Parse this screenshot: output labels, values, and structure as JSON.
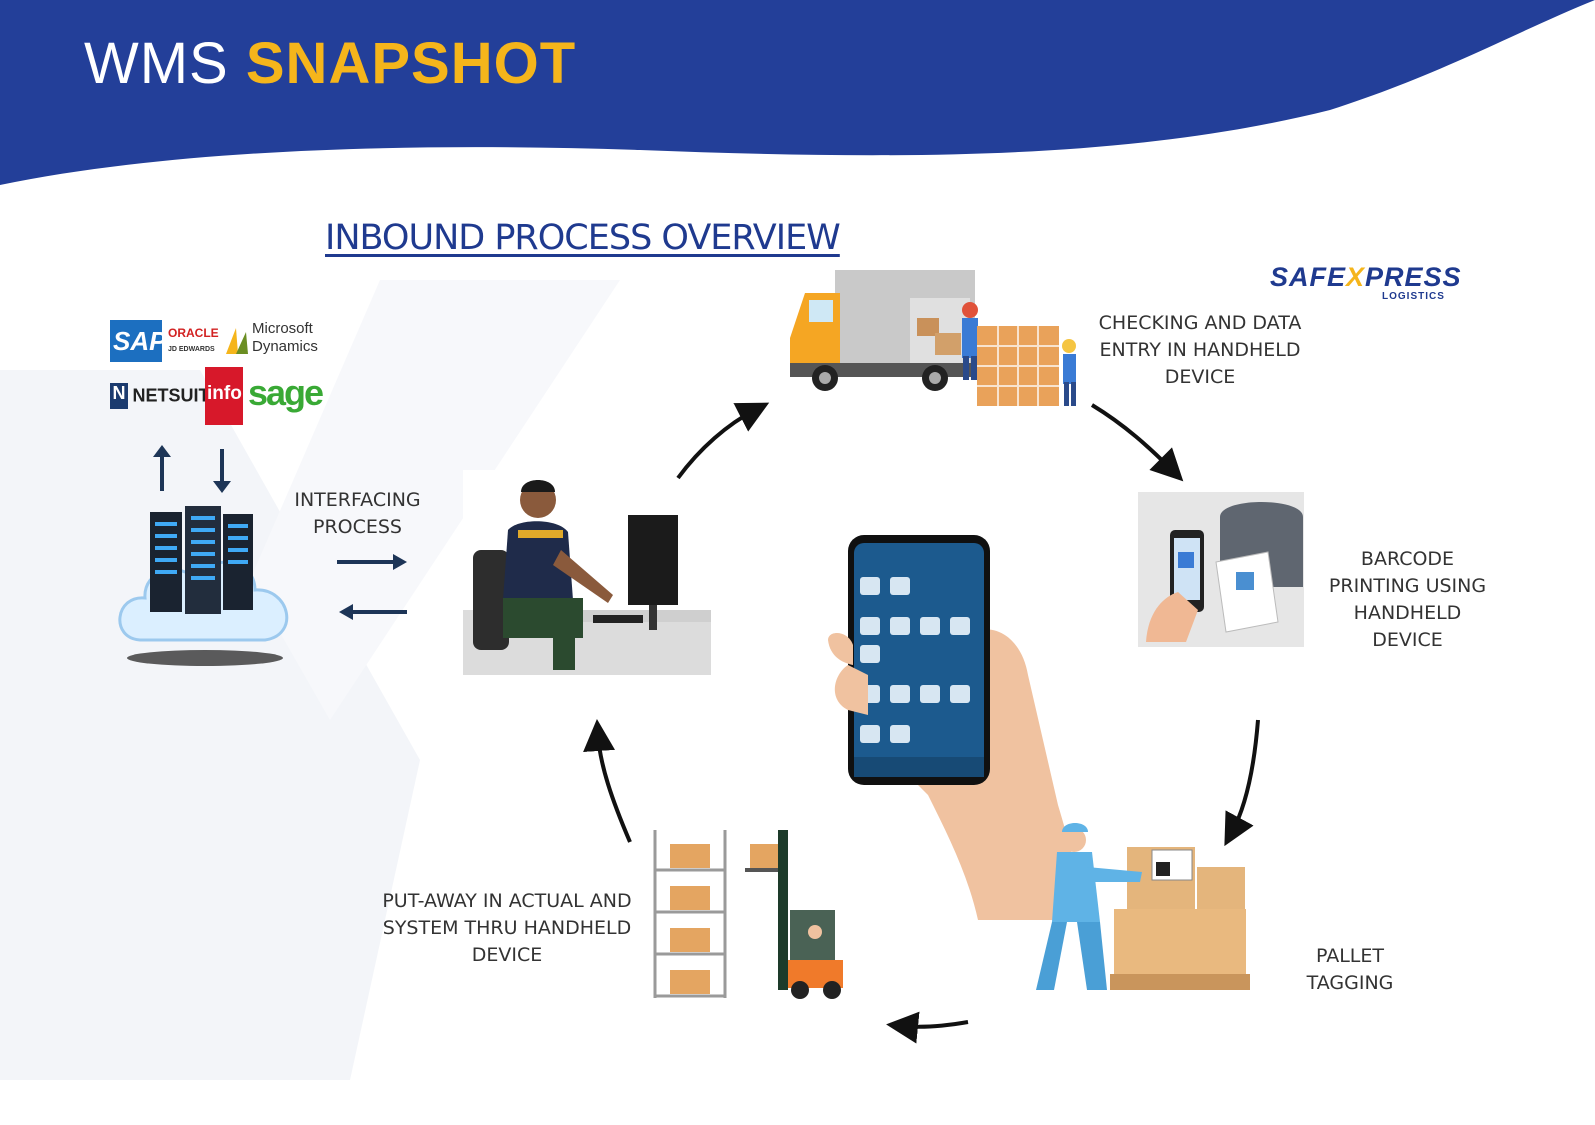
{
  "header": {
    "title_part1": "WMS",
    "title_part2": "SNAPSHOT",
    "band_color": "#233f99",
    "accent_color": "#f5b51b"
  },
  "diagram": {
    "title": "INBOUND PROCESS OVERVIEW",
    "brand": {
      "name_a": "SAFE",
      "name_x": "X",
      "name_b": "PRESS",
      "sub": "LOGISTICS"
    },
    "erp_logos": [
      "SAP",
      "ORACLE",
      "JD EDWARDS",
      "Microsoft",
      "Dynamics",
      "NETSUITE",
      "infor",
      "sage"
    ],
    "steps": [
      {
        "label": "INTERFACING\nPROCESS"
      },
      {
        "label": "CHECKING AND DATA\nENTRY IN HANDHELD\nDEVICE"
      },
      {
        "label": "BARCODE\nPRINTING USING\nHANDHELD\nDEVICE"
      },
      {
        "label": "PALLET\nTAGGING"
      },
      {
        "label": "PUT-AWAY IN ACTUAL AND\nSYSTEM THRU HANDHELD\nDEVICE"
      }
    ]
  }
}
